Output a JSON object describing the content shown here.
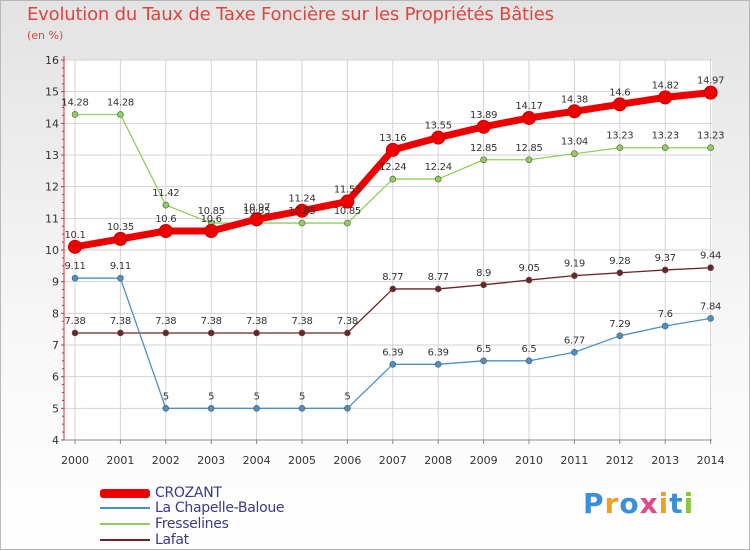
{
  "title": "Evolution du Taux de Taxe Foncière sur les Propriétés Bâties",
  "subtitle": "(en %)",
  "brand": {
    "letters": [
      "P",
      "r",
      "o",
      "x",
      "i",
      "t",
      "i"
    ],
    "colors": [
      "#3b8fd8",
      "#f0a020",
      "#3b8fd8",
      "#e04a8a",
      "#f0a020",
      "#3b8fd8",
      "#8cc63f"
    ]
  },
  "chart_data": {
    "type": "line",
    "title": "Evolution du Taux de Taxe Foncière sur les Propriétés Bâties",
    "ylabel": "(en %)",
    "xlabel": "",
    "categories": [
      "2000",
      "2001",
      "2002",
      "2003",
      "2004",
      "2005",
      "2006",
      "2007",
      "2008",
      "2009",
      "2010",
      "2011",
      "2012",
      "2013",
      "2014"
    ],
    "ylim": [
      4,
      16
    ],
    "yticks": [
      "4",
      "5",
      "6",
      "7",
      "8",
      "9",
      "10",
      "11",
      "12",
      "13",
      "14",
      "15",
      "16"
    ],
    "grid": true,
    "series": [
      {
        "name": "CROZANT",
        "color": "#ee0000",
        "emphasis": true,
        "values": [
          10.1,
          10.35,
          10.6,
          10.6,
          10.97,
          11.24,
          11.53,
          13.16,
          13.55,
          13.89,
          14.17,
          14.38,
          14.6,
          14.82,
          14.97
        ],
        "labels": [
          "10.1",
          "10.35",
          "10.6",
          "10.6",
          "10.97",
          "11.24",
          "11.53",
          "13.16",
          "13.55",
          "13.89",
          "14.17",
          "14.38",
          "14.6",
          "14.82",
          "14.97"
        ]
      },
      {
        "name": "La Chapelle-Baloue",
        "color": "#4a90c8",
        "values": [
          9.11,
          9.11,
          5,
          5,
          5,
          5,
          5,
          6.39,
          6.39,
          6.5,
          6.5,
          6.77,
          7.29,
          7.6,
          7.84
        ],
        "labels": [
          "9.11",
          "9.11",
          "5",
          "5",
          "5",
          "5",
          "5",
          "6.39",
          "6.39",
          "6.5",
          "6.5",
          "6.77",
          "7.29",
          "7.6",
          "7.84"
        ]
      },
      {
        "name": "Fresselines",
        "color": "#8ed05a",
        "values": [
          14.28,
          14.28,
          11.42,
          10.85,
          10.85,
          10.85,
          10.85,
          12.24,
          12.24,
          12.85,
          12.85,
          13.04,
          13.23,
          13.23,
          13.23
        ],
        "labels": [
          "14.28",
          "14.28",
          "11.42",
          "10.85",
          "10.85",
          "10.85",
          "10.85",
          "12.24",
          "12.24",
          "12.85",
          "12.85",
          "13.04",
          "13.23",
          "13.23",
          "13.23"
        ]
      },
      {
        "name": "Lafat",
        "color": "#6e2424",
        "values": [
          7.38,
          7.38,
          7.38,
          7.38,
          7.38,
          7.38,
          7.38,
          8.77,
          8.77,
          8.9,
          9.05,
          9.19,
          9.28,
          9.37,
          9.44
        ],
        "labels": [
          "7.38",
          "7.38",
          "7.38",
          "7.38",
          "7.38",
          "7.38",
          "7.38",
          "8.77",
          "8.77",
          "8.9",
          "9.05",
          "9.19",
          "9.28",
          "9.37",
          "9.44"
        ]
      }
    ]
  }
}
